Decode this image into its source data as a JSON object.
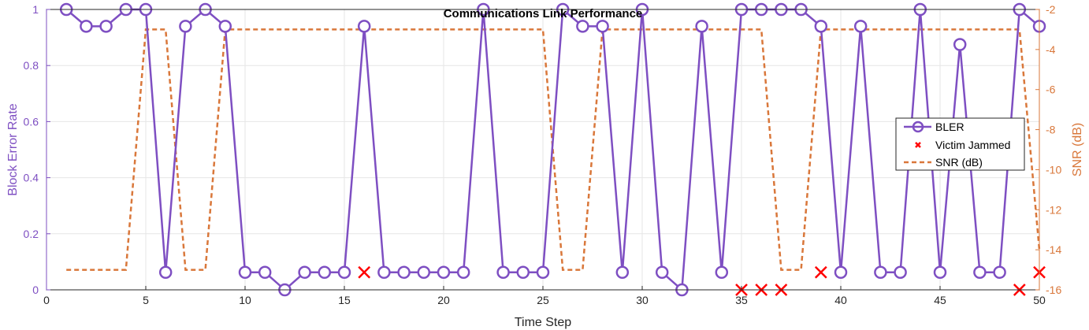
{
  "chart_data": {
    "type": "line",
    "title": "Communications Link Performance",
    "xlabel": "Time Step",
    "ylabel_left": "Block Error Rate",
    "ylabel_right": "SNR (dB)",
    "xlim": [
      0,
      50
    ],
    "ylim_left": [
      0,
      1
    ],
    "ylim_right": [
      -16,
      -2
    ],
    "x_ticks": [
      "0",
      "5",
      "10",
      "15",
      "20",
      "25",
      "30",
      "35",
      "40",
      "45",
      "50"
    ],
    "y_left_ticks": [
      "0",
      "0.2",
      "0.4",
      "0.6",
      "0.8",
      "1"
    ],
    "y_right_ticks": [
      "-16",
      "-14",
      "-12",
      "-10",
      "-8",
      "-6",
      "-4",
      "-2"
    ],
    "grid": true,
    "legend_position": "right",
    "colors": {
      "bler": "#7E4FC2",
      "jammed": "#FF0000",
      "snr": "#D9773A"
    },
    "series": [
      {
        "name": "BLER",
        "axis": "left",
        "style": "solid-circle",
        "x": [
          1,
          2,
          3,
          4,
          5,
          6,
          7,
          8,
          9,
          10,
          11,
          12,
          13,
          14,
          15,
          16,
          17,
          18,
          19,
          20,
          21,
          22,
          23,
          24,
          25,
          26,
          27,
          28,
          29,
          30,
          31,
          32,
          33,
          34,
          35,
          36,
          37,
          38,
          39,
          40,
          41,
          42,
          43,
          44,
          45,
          46,
          47,
          48,
          49,
          50
        ],
        "values": [
          1,
          0.94,
          0.94,
          1,
          1,
          0.0625,
          0.94,
          1,
          0.94,
          0.0625,
          0.0625,
          0,
          0.0625,
          0.0625,
          0.0625,
          0.94,
          0.0625,
          0.0625,
          0.0625,
          0.0625,
          0.0625,
          1,
          0.0625,
          0.0625,
          0.0625,
          1,
          0.94,
          0.94,
          0.0625,
          1,
          0.0625,
          0,
          0.94,
          0.0625,
          1,
          1,
          1,
          1,
          0.94,
          0.0625,
          0.94,
          0.0625,
          0.0625,
          1,
          0.0625,
          0.875,
          0.0625,
          0.0625,
          1,
          0.94
        ]
      },
      {
        "name": "Victim Jammed",
        "axis": "left",
        "style": "x-marker",
        "x": [
          16,
          35,
          36,
          37,
          39,
          49,
          50
        ],
        "values": [
          0.0625,
          0,
          0,
          0,
          0.0625,
          0,
          0.0625
        ]
      },
      {
        "name": "SNR (dB)",
        "axis": "right",
        "style": "dashed",
        "x": [
          1,
          2,
          3,
          4,
          5,
          6,
          7,
          8,
          9,
          10,
          11,
          12,
          13,
          14,
          15,
          16,
          17,
          18,
          19,
          20,
          21,
          22,
          23,
          24,
          25,
          26,
          27,
          28,
          29,
          30,
          31,
          32,
          33,
          34,
          35,
          36,
          37,
          38,
          39,
          40,
          41,
          42,
          43,
          44,
          45,
          46,
          47,
          48,
          49,
          50
        ],
        "values": [
          -15,
          -15,
          -15,
          -15,
          -3,
          -3,
          -15,
          -15,
          -3,
          -3,
          -3,
          -3,
          -3,
          -3,
          -3,
          -3,
          -3,
          -3,
          -3,
          -3,
          -3,
          -3,
          -3,
          -3,
          -3,
          -15,
          -15,
          -3,
          -3,
          -3,
          -3,
          -3,
          -3,
          -3,
          -3,
          -3,
          -15,
          -15,
          -3,
          -3,
          -3,
          -3,
          -3,
          -3,
          -3,
          -3,
          -3,
          -3,
          -3,
          -14
        ]
      }
    ]
  }
}
